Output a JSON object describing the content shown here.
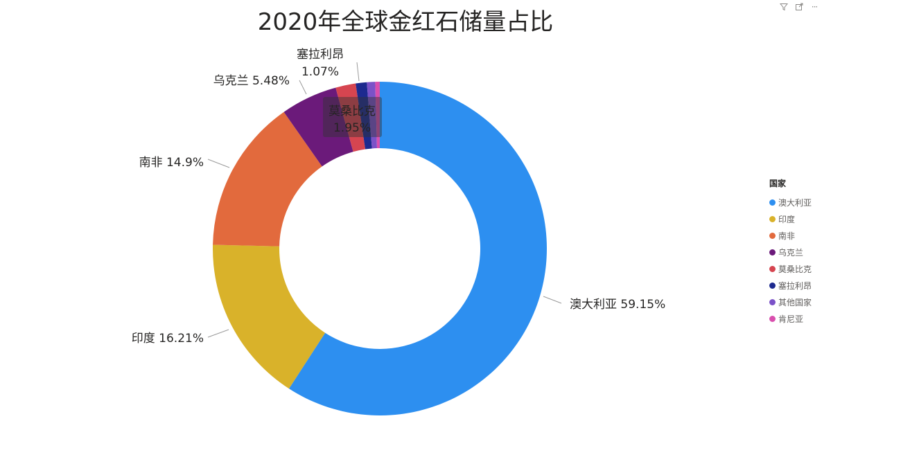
{
  "title": "2020年全球金红石储量占比",
  "toolbar": {
    "icons": [
      "filter-icon",
      "focus-mode-icon",
      "more-options-icon"
    ],
    "more_glyph": "···"
  },
  "legend": {
    "title": "国家"
  },
  "colors": {
    "澳大利亚": "#2D8FF0",
    "印度": "#D9B22A",
    "南非": "#E26A3D",
    "乌克兰": "#6B1A7A",
    "莫桑比克": "#D64550",
    "塞拉利昂": "#1D2A8F",
    "其他国家": "#7B52C8",
    "肯尼亚": "#D94FAE"
  },
  "chart_data": {
    "type": "pie",
    "variant": "donut",
    "title": "2020年全球金红石储量占比",
    "legend_title": "国家",
    "legend_position": "right",
    "categories": [
      "澳大利亚",
      "印度",
      "南非",
      "乌克兰",
      "莫桑比克",
      "塞拉利昂",
      "其他国家",
      "肯尼亚"
    ],
    "values": [
      59.15,
      16.21,
      14.9,
      5.48,
      1.95,
      1.07,
      0.8,
      0.44
    ],
    "data_labels": [
      {
        "category": "澳大利亚",
        "text": "59.15%"
      },
      {
        "category": "印度",
        "text": "16.21%"
      },
      {
        "category": "南非",
        "text": "14.9%"
      },
      {
        "category": "乌克兰",
        "text": "5.48%"
      },
      {
        "category": "莫桑比克",
        "text": "1.95%"
      },
      {
        "category": "塞拉利昂",
        "text": "1.07%"
      }
    ]
  }
}
